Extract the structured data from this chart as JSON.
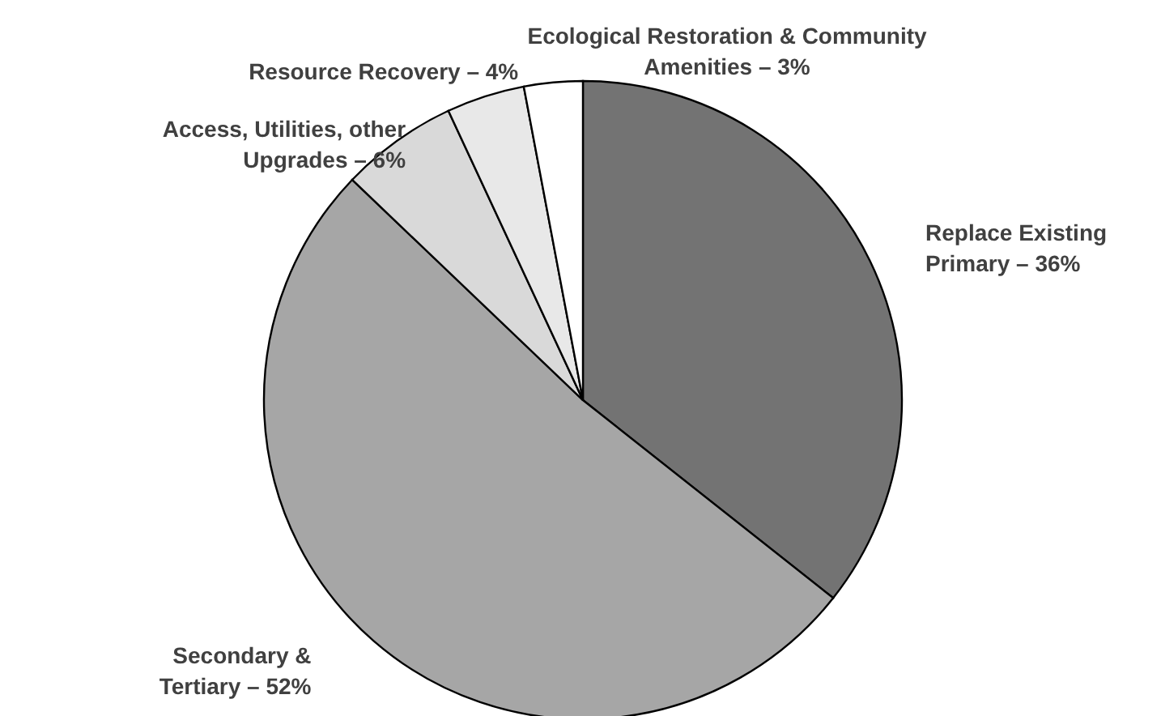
{
  "chart_data": {
    "type": "pie",
    "categories": [
      "Replace Existing Primary",
      "Secondary & Tertiary",
      "Access, Utilities, other Upgrades",
      "Resource Recovery",
      "Ecological Restoration & Community Amenities"
    ],
    "values": [
      36,
      52,
      6,
      4,
      3
    ],
    "value_labels": [
      "36%",
      "52%",
      "6%",
      "4%",
      "3%"
    ],
    "colors": [
      "#737373",
      "#a6a6a6",
      "#d9d9d9",
      "#e8e8e8",
      "#ffffff"
    ]
  }
}
